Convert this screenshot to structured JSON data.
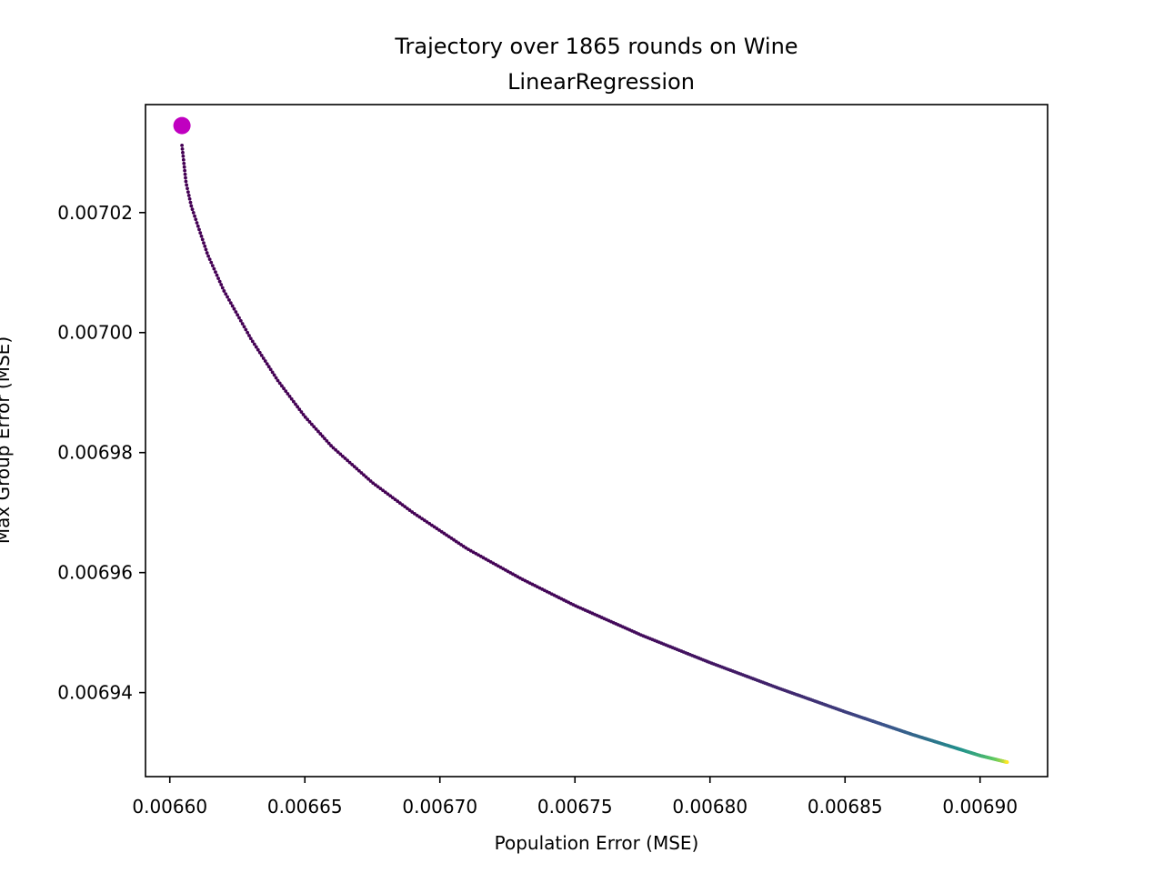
{
  "chart_data": {
    "type": "scatter",
    "title": "Trajectory over 1865 rounds on Wine",
    "subtitle": "LinearRegression",
    "xlabel": "Population Error (MSE)",
    "ylabel": "Max Group Error (MSE)",
    "xlim": [
      0.006591,
      0.006925
    ],
    "ylim": [
      0.006926,
      0.007038
    ],
    "xticks": [
      {
        "value": 0.0066,
        "label": "0.00660"
      },
      {
        "value": 0.00665,
        "label": "0.00665"
      },
      {
        "value": 0.0067,
        "label": "0.00670"
      },
      {
        "value": 0.00675,
        "label": "0.00675"
      },
      {
        "value": 0.0068,
        "label": "0.00680"
      },
      {
        "value": 0.00685,
        "label": "0.00685"
      },
      {
        "value": 0.0069,
        "label": "0.00690"
      }
    ],
    "yticks": [
      {
        "value": 0.00694,
        "label": "0.00694"
      },
      {
        "value": 0.00696,
        "label": "0.00696"
      },
      {
        "value": 0.00698,
        "label": "0.00698"
      },
      {
        "value": 0.007,
        "label": "0.00700"
      },
      {
        "value": 0.00702,
        "label": "0.00702"
      }
    ],
    "grid": false,
    "colormap": "viridis",
    "rounds": 1865,
    "series": [
      {
        "points": [
          {
            "x": 0.0066045,
            "y": 0.0070312
          },
          {
            "x": 0.006606,
            "y": 0.007025
          },
          {
            "x": 0.006608,
            "y": 0.007021
          },
          {
            "x": 0.006611,
            "y": 0.007017
          },
          {
            "x": 0.006614,
            "y": 0.007013
          },
          {
            "x": 0.006617,
            "y": 0.00701
          },
          {
            "x": 0.00662,
            "y": 0.007007
          },
          {
            "x": 0.006625,
            "y": 0.007003
          },
          {
            "x": 0.00663,
            "y": 0.006999
          },
          {
            "x": 0.00664,
            "y": 0.006992
          },
          {
            "x": 0.00665,
            "y": 0.006986
          },
          {
            "x": 0.00666,
            "y": 0.006981
          },
          {
            "x": 0.006675,
            "y": 0.006975
          },
          {
            "x": 0.00669,
            "y": 0.00697
          },
          {
            "x": 0.00671,
            "y": 0.006964
          },
          {
            "x": 0.00673,
            "y": 0.006959
          },
          {
            "x": 0.00675,
            "y": 0.0069545
          },
          {
            "x": 0.006775,
            "y": 0.0069495
          },
          {
            "x": 0.0068,
            "y": 0.006945
          },
          {
            "x": 0.006825,
            "y": 0.0069408
          },
          {
            "x": 0.00685,
            "y": 0.0069368
          },
          {
            "x": 0.006875,
            "y": 0.006933
          },
          {
            "x": 0.0069,
            "y": 0.0069295
          },
          {
            "x": 0.00691,
            "y": 0.0069284
          }
        ]
      }
    ],
    "start_marker": {
      "x": 0.0066045,
      "y": 0.0070345,
      "color": "#c000c0"
    },
    "colors": {
      "viridis_start": "#440154",
      "viridis_mid": "#3b528b",
      "viridis_teal": "#21918c",
      "viridis_green": "#5ec962",
      "viridis_end": "#fde725"
    }
  }
}
